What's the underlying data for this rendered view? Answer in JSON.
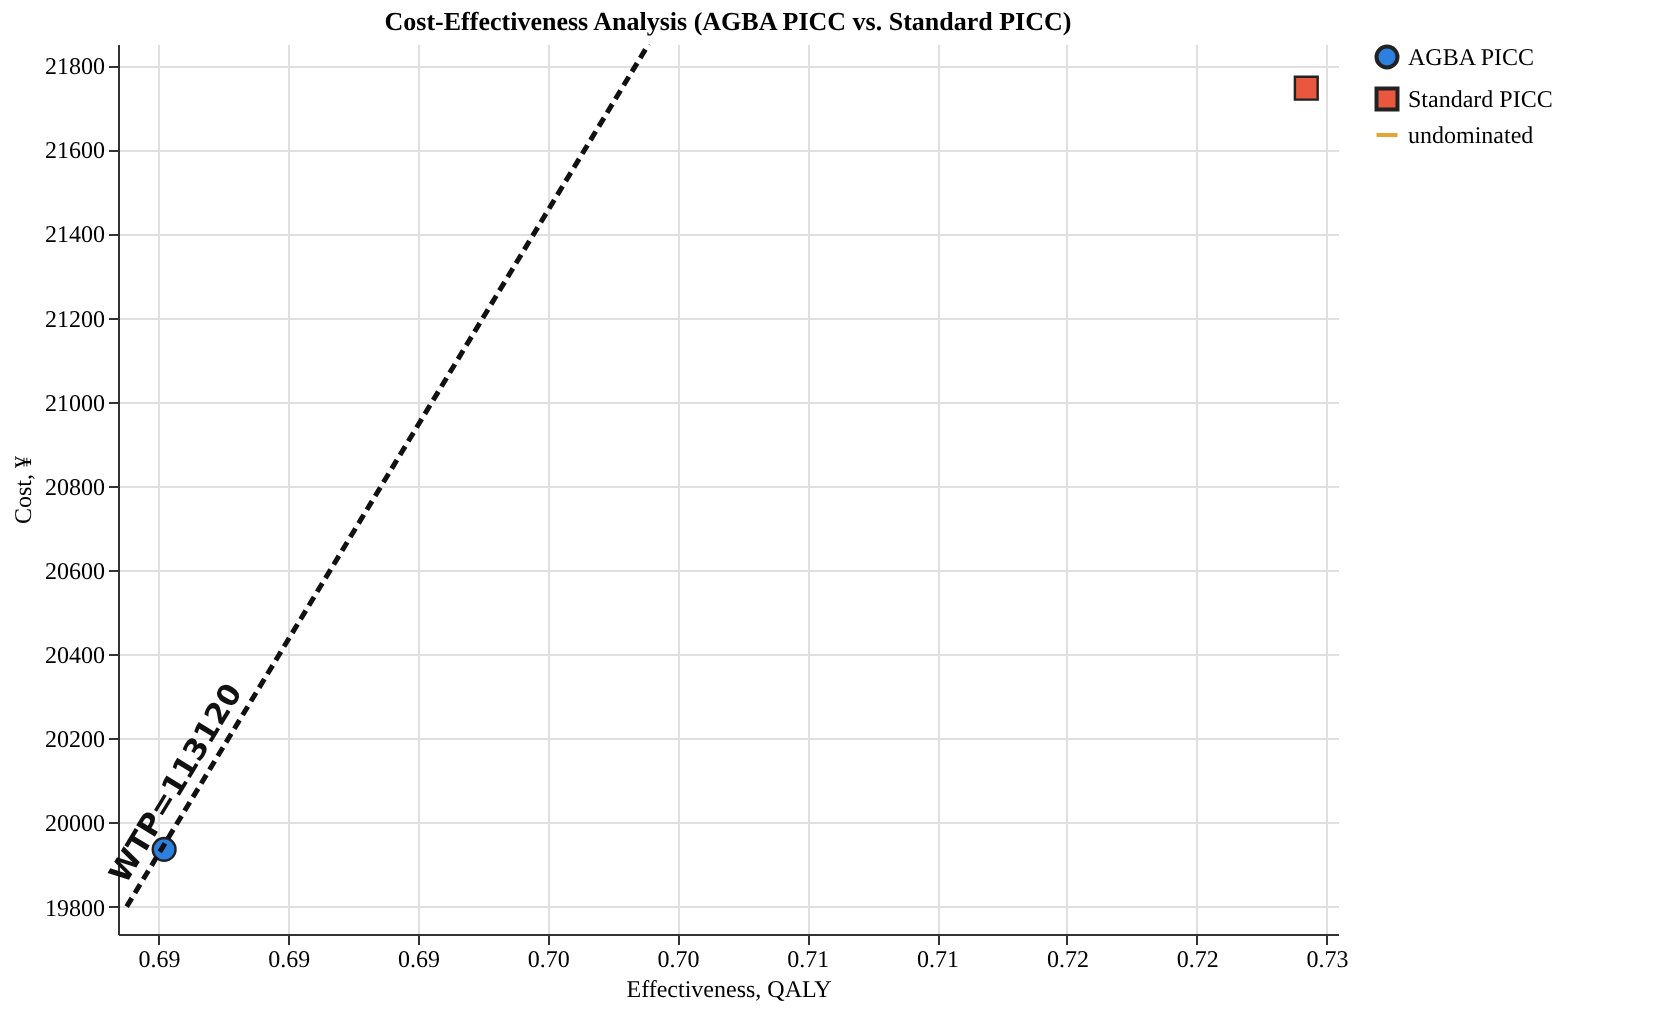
{
  "chart_data": {
    "type": "scatter",
    "title": "Cost-Effectiveness Analysis (AGBA PICC vs. Standard PICC)",
    "xlabel": "Effectiveness, QALY",
    "ylabel": "Cost, ¥",
    "series": [
      {
        "name": "AGBA PICC",
        "marker": "circle",
        "color": "#2d7fe0",
        "x": [
          0.6857
        ],
        "values": [
          19936
        ]
      },
      {
        "name": "Standard PICC",
        "marker": "square",
        "color": "#e9573f",
        "x": [
          0.7253
        ],
        "values": [
          21745
        ]
      },
      {
        "name": "undominated",
        "type": "line",
        "color": "#e6a532"
      },
      {
        "type": "line",
        "line_style": "dashed",
        "color": "#111111",
        "x": [
          0.6844,
          0.7025
        ],
        "values": [
          19800,
          21850
        ]
      }
    ],
    "annotations": [
      "WTP=113120"
    ],
    "xlim": [
      0.6841,
      0.7264
    ],
    "ylim": [
      19735,
      21850
    ],
    "xticks": [
      {
        "value": 0.6855,
        "label": "0.69"
      },
      {
        "value": 0.69,
        "label": "0.69"
      },
      {
        "value": 0.6945,
        "label": "0.69"
      },
      {
        "value": 0.699,
        "label": "0.70"
      },
      {
        "value": 0.7035,
        "label": "0.70"
      },
      {
        "value": 0.708,
        "label": "0.71"
      },
      {
        "value": 0.7125,
        "label": "0.71"
      },
      {
        "value": 0.717,
        "label": "0.72"
      },
      {
        "value": 0.7215,
        "label": "0.72"
      },
      {
        "value": 0.726,
        "label": "0.73"
      }
    ],
    "yticks": [
      19800,
      20000,
      20200,
      20400,
      20600,
      20800,
      21000,
      21200,
      21400,
      21600,
      21800
    ],
    "grid": true,
    "legend": "top right"
  }
}
